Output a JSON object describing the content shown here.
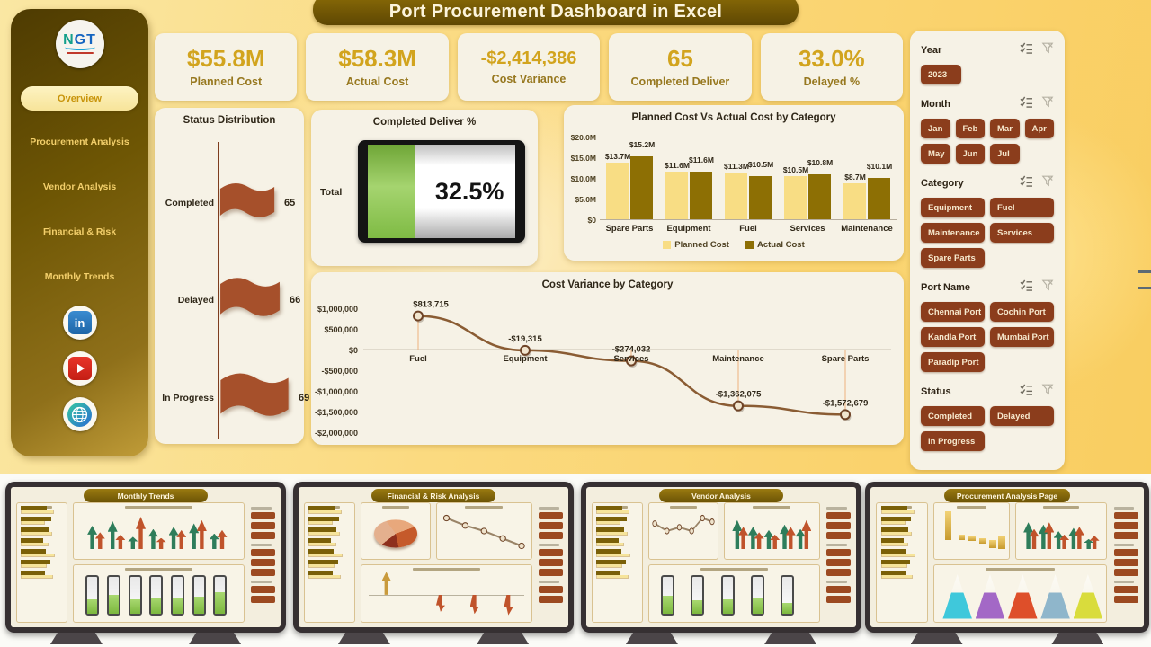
{
  "title": "Port Procurement Dashboard in Excel",
  "sidebar": {
    "logo_text": "NGT",
    "items": [
      {
        "label": "Overview",
        "active": true
      },
      {
        "label": "Procurement Analysis",
        "active": false
      },
      {
        "label": "Vendor Analysis",
        "active": false
      },
      {
        "label": "Financial & Risk",
        "active": false
      },
      {
        "label": "Monthly Trends",
        "active": false
      }
    ],
    "social_icons": [
      "linkedin-icon",
      "youtube-icon",
      "globe-icon"
    ]
  },
  "kpis": [
    {
      "value": "$55.8M",
      "label": "Planned Cost"
    },
    {
      "value": "$58.3M",
      "label": "Actual Cost"
    },
    {
      "value": "-$2,414,386",
      "label": "Cost Variance"
    },
    {
      "value": "65",
      "label": "Completed Deliver"
    },
    {
      "value": "33.0%",
      "label": "Delayed %"
    }
  ],
  "status_distribution": {
    "title": "Status Distribution",
    "items": [
      {
        "label": "Completed",
        "value": "65"
      },
      {
        "label": "Delayed",
        "value": "66"
      },
      {
        "label": "In Progress",
        "value": "69"
      }
    ]
  },
  "battery": {
    "title": "Completed Deliver %",
    "row_label": "Total",
    "value": "32.5%",
    "percent": 32.5
  },
  "chart_data": [
    {
      "name": "planned-vs-actual",
      "type": "bar",
      "title": "Planned Cost Vs Actual Cost by Category",
      "categories": [
        "Spare Parts",
        "Equipment",
        "Fuel",
        "Services",
        "Maintenance"
      ],
      "series": [
        {
          "name": "Planned Cost",
          "values": [
            13.7,
            11.6,
            11.3,
            10.5,
            8.7
          ],
          "labels": [
            "$13.7M",
            "$11.6M",
            "$11.3M",
            "$10.5M",
            "$8.7M"
          ],
          "color": "#F8DD84"
        },
        {
          "name": "Actual Cost",
          "values": [
            15.2,
            11.6,
            10.5,
            10.8,
            10.1
          ],
          "labels": [
            "$15.2M",
            "$11.6M",
            "$10.5M",
            "$10.8M",
            "$10.1M"
          ],
          "color": "#8D6F04"
        }
      ],
      "yticks": [
        "$20.0M",
        "$15.0M",
        "$10.0M",
        "$5.0M",
        "$0"
      ],
      "ylim": [
        0,
        20
      ],
      "legend_position": "bottom",
      "grid": false
    },
    {
      "name": "cost-variance",
      "type": "line",
      "title": "Cost Variance by Category",
      "categories": [
        "Fuel",
        "Equipment",
        "Services",
        "Maintenance",
        "Spare Parts"
      ],
      "values": [
        813715,
        -19315,
        -274032,
        -1362075,
        -1572679
      ],
      "labels": [
        "$813,715",
        "-$19,315",
        "-$274,032",
        "-$1,362,075",
        "-$1,572,679"
      ],
      "yticks": [
        "$1,000,000",
        "$500,000",
        "$0",
        "-$500,000",
        "-$1,000,000",
        "-$1,500,000",
        "-$2,000,000"
      ],
      "ylim": [
        -2000000,
        1000000
      ],
      "line_color": "#8A5C33",
      "grid": false
    }
  ],
  "slicers": [
    {
      "title": "Year",
      "cols": 3,
      "options": [
        "2023"
      ]
    },
    {
      "title": "Month",
      "cols": 4,
      "options": [
        "Jan",
        "Feb",
        "Mar",
        "Apr",
        "May",
        "Jun",
        "Jul"
      ]
    },
    {
      "title": "Category",
      "cols": 2,
      "options": [
        "Equipment",
        "Fuel",
        "Maintenance",
        "Services",
        "Spare Parts"
      ]
    },
    {
      "title": "Port Name",
      "cols": 2,
      "options": [
        "Chennai Port",
        "Cochin Port",
        "Kandla Port",
        "Mumbai Port",
        "Paradip Port"
      ]
    },
    {
      "title": "Status",
      "cols": 2,
      "options": [
        "Completed",
        "Delayed",
        "In Progress"
      ]
    }
  ],
  "thumbnails": [
    {
      "title": "Monthly Trends"
    },
    {
      "title": "Financial & Risk Analysis"
    },
    {
      "title": "Vendor Analysis"
    },
    {
      "title": "Procurement Analysis Page"
    }
  ],
  "colors": {
    "background_gold": "#FBD87C",
    "panel_cream": "#F6F2E6",
    "kpi_value_gold": "#D2A41E",
    "sienna_accent": "#A6502B",
    "slicer_brown": "#8B3D1C",
    "battery_green": "#8CC152",
    "planned_bar": "#F8DD84",
    "actual_bar": "#8D6F04",
    "sidebar_dark": "#5E4703"
  }
}
